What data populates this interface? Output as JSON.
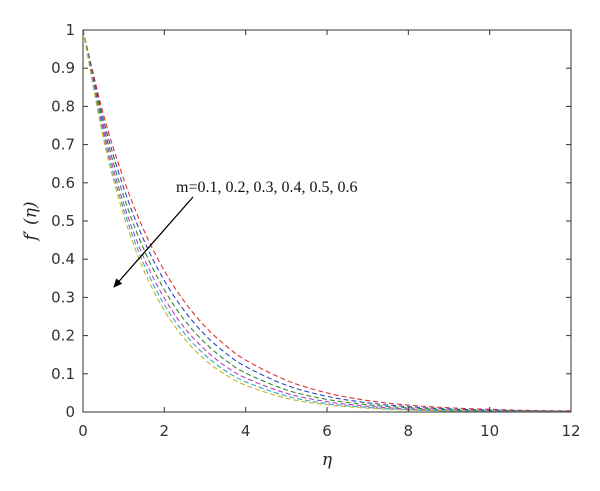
{
  "chart_data": {
    "type": "line",
    "title": "",
    "xlabel": "η",
    "ylabel": "f′ (η)",
    "xlim": [
      0,
      12
    ],
    "ylim": [
      0,
      1
    ],
    "xticks": [
      "0",
      "2",
      "4",
      "6",
      "8",
      "10",
      "12"
    ],
    "yticks": [
      "0",
      "0.1",
      "0.2",
      "0.3",
      "0.4",
      "0.5",
      "0.6",
      "0.7",
      "0.8",
      "0.9",
      "1"
    ],
    "grid": false,
    "line_style": "dashed",
    "annotation": "m=0.1, 0.2, 0.3, 0.4, 0.5, 0.6",
    "x": [
      0,
      0.5,
      1,
      1.5,
      2,
      2.5,
      3,
      3.5,
      4,
      5,
      6,
      7,
      8,
      9,
      10,
      11,
      12
    ],
    "series": [
      {
        "color": "#e0312f",
        "values": [
          1.0,
          0.78,
          0.61,
          0.475,
          0.37,
          0.288,
          0.224,
          0.175,
          0.136,
          0.083,
          0.05,
          0.03,
          0.018,
          0.011,
          0.007,
          0.004,
          0.003
        ]
      },
      {
        "color": "#2b45c8",
        "values": [
          1.0,
          0.766,
          0.587,
          0.449,
          0.344,
          0.264,
          0.202,
          0.155,
          0.119,
          0.07,
          0.041,
          0.024,
          0.014,
          0.008,
          0.005,
          0.003,
          0.002
        ]
      },
      {
        "color": "#2e8b2e",
        "values": [
          1.0,
          0.752,
          0.565,
          0.425,
          0.32,
          0.24,
          0.181,
          0.136,
          0.102,
          0.058,
          0.033,
          0.019,
          0.011,
          0.006,
          0.003,
          0.002,
          0.001
        ]
      },
      {
        "color": "#c03bbf",
        "values": [
          1.0,
          0.74,
          0.545,
          0.403,
          0.298,
          0.22,
          0.163,
          0.12,
          0.089,
          0.049,
          0.027,
          0.015,
          0.008,
          0.004,
          0.002,
          0.001,
          0.001
        ]
      },
      {
        "color": "#2aa9c8",
        "values": [
          1.0,
          0.728,
          0.53,
          0.386,
          0.281,
          0.205,
          0.149,
          0.108,
          0.079,
          0.042,
          0.022,
          0.012,
          0.006,
          0.003,
          0.002,
          0.001,
          0.0
        ]
      },
      {
        "color": "#c8b420",
        "values": [
          1.0,
          0.717,
          0.515,
          0.37,
          0.266,
          0.191,
          0.137,
          0.098,
          0.07,
          0.036,
          0.019,
          0.01,
          0.005,
          0.003,
          0.001,
          0.001,
          0.0
        ]
      }
    ]
  }
}
